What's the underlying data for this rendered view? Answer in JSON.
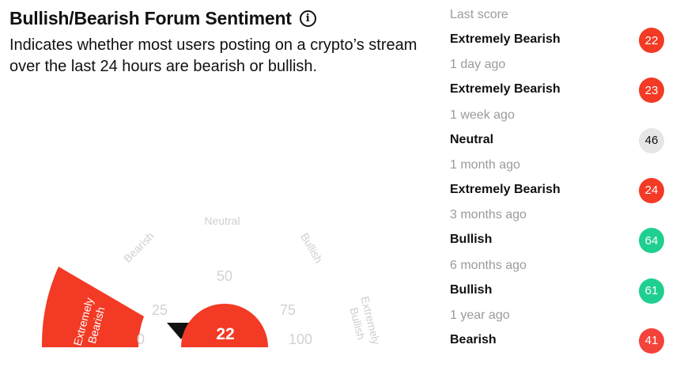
{
  "header": {
    "title": "Bullish/Bearish Forum Sentiment",
    "info_icon": "info-icon",
    "description": "Indicates whether most users posting on a crypto’s stream over the last 24 hours are bearish or bullish."
  },
  "gauge": {
    "score": 22,
    "score_min": 0,
    "score_max": 100,
    "active_zone": "Extremely Bearish",
    "zone_labels": [
      "Bearish",
      "Neutral",
      "Bullish"
    ],
    "extreme_bearish_label": [
      "Extremely",
      "Bearish"
    ],
    "extreme_bullish_label": [
      "Extremely",
      "Bullish"
    ],
    "ticks": [
      "0",
      "25",
      "50",
      "75",
      "100"
    ],
    "pointer_icon": "triangle-pointer-icon"
  },
  "history": [
    {
      "period": "Last score",
      "sentiment": "Extremely Bearish",
      "score": "22",
      "color": "#f23a25"
    },
    {
      "period": "1 day ago",
      "sentiment": "Extremely Bearish",
      "score": "23",
      "color": "#f23a25"
    },
    {
      "period": "1 week ago",
      "sentiment": "Neutral",
      "score": "46",
      "color": "#e6e6e6"
    },
    {
      "period": "1 month ago",
      "sentiment": "Extremely Bearish",
      "score": "24",
      "color": "#f23a25"
    },
    {
      "period": "3 months ago",
      "sentiment": "Bullish",
      "score": "64",
      "color": "#1fcf8f"
    },
    {
      "period": "6 months ago",
      "sentiment": "Bullish",
      "score": "61",
      "color": "#1fcf8f"
    },
    {
      "period": "1 year ago",
      "sentiment": "Bearish",
      "score": "41",
      "color": "#f4433a"
    }
  ],
  "colors": {
    "bearish_red": "#f23a25",
    "neutral_grey": "#e6e6e6",
    "bullish_green": "#1fcf8f",
    "muted_text": "#9b9b9b"
  }
}
